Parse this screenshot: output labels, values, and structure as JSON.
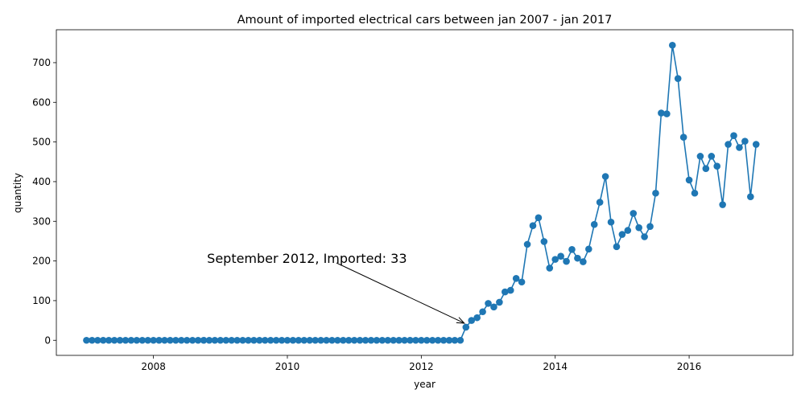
{
  "chart_data": {
    "type": "line",
    "title": "Amount of imported electrical cars between jan 2007 - jan 2017",
    "xlabel": "year",
    "ylabel": "quantity",
    "xlim": [
      2006.55,
      2017.55
    ],
    "ylim": [
      -38,
      783
    ],
    "x_ticks": [
      2008,
      2010,
      2012,
      2014,
      2016
    ],
    "y_ticks": [
      0,
      100,
      200,
      300,
      400,
      500,
      600,
      700
    ],
    "grid": false,
    "line_color": "#1f77b4",
    "marker_color": "#1f77b4",
    "series": [
      {
        "start_year": 2007,
        "start_month": 1,
        "values": [
          0,
          0,
          0,
          0,
          0,
          0,
          0,
          0,
          0,
          0,
          0,
          0,
          0,
          0,
          0,
          0,
          0,
          0,
          0,
          0,
          0,
          0,
          0,
          0,
          0,
          0,
          0,
          0,
          0,
          0,
          0,
          0,
          0,
          0,
          0,
          0,
          0,
          0,
          0,
          0,
          0,
          0,
          0,
          0,
          0,
          0,
          0,
          0,
          0,
          0,
          0,
          0,
          0,
          0,
          0,
          0,
          0,
          0,
          0,
          0,
          0,
          0,
          0,
          0,
          0,
          0,
          0,
          0,
          33,
          50,
          57,
          72,
          93,
          84,
          96,
          122,
          126,
          156,
          147,
          242,
          289,
          309,
          249,
          182,
          204,
          212,
          199,
          229,
          207,
          198,
          230,
          292,
          348,
          413,
          298,
          236,
          267,
          277,
          320,
          284,
          261,
          287,
          371,
          573,
          571,
          744,
          660,
          512,
          404,
          371,
          464,
          433,
          464,
          439,
          342,
          494,
          516,
          486,
          502,
          362,
          494
        ]
      }
    ],
    "annotation": {
      "text": "September 2012, Imported: 33",
      "point_index": 68,
      "text_anchor_data": [
        2008.8,
        205
      ]
    }
  }
}
